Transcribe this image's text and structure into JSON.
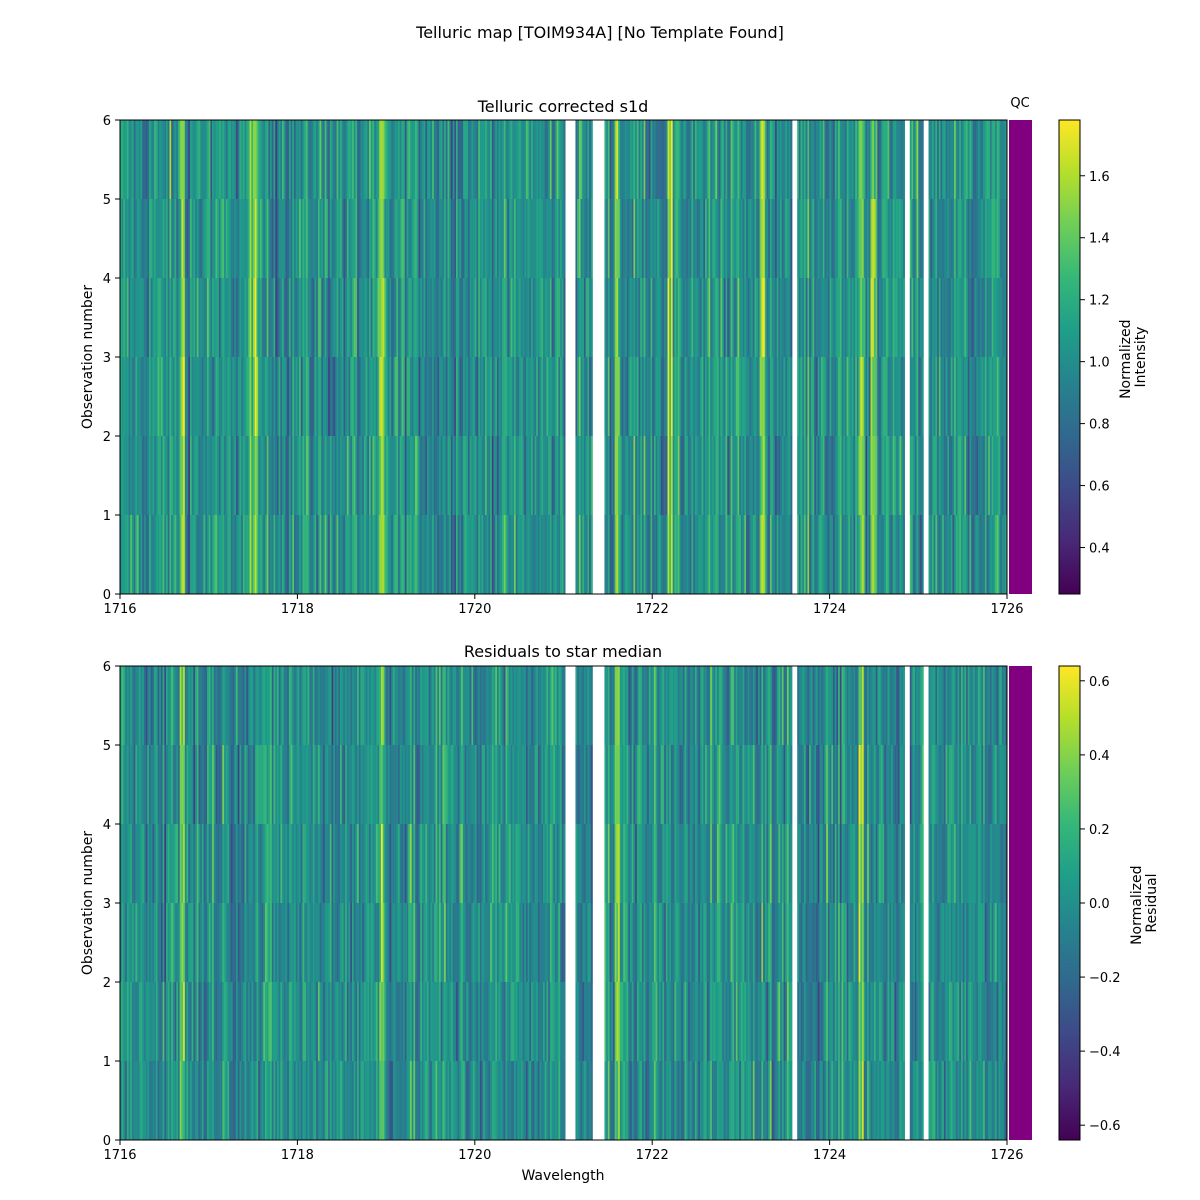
{
  "figure": {
    "suptitle": "Telluric map [TOIM934A] [No Template Found]"
  },
  "qc": {
    "label": "QC",
    "color": "#800080"
  },
  "colormap": [
    "#440154",
    "#482878",
    "#3e4989",
    "#31688e",
    "#26828e",
    "#1f9e89",
    "#35b779",
    "#6ece58",
    "#b5de2b",
    "#fde725"
  ],
  "chart_data": [
    {
      "type": "heatmap",
      "title": "Telluric corrected s1d",
      "xlabel": "",
      "ylabel": "Observation number",
      "xlim": [
        1716,
        1726
      ],
      "ylim": [
        0,
        6
      ],
      "xticks": [
        "1716",
        "1718",
        "1720",
        "1722",
        "1724",
        "1726"
      ],
      "yticks": [
        "0",
        "1",
        "2",
        "3",
        "4",
        "5",
        "6"
      ],
      "colorbar": {
        "label": [
          "Normalized",
          "Intensity"
        ],
        "range": [
          0.25,
          1.78
        ],
        "ticks": [
          "0.4",
          "0.6",
          "0.8",
          "1.0",
          "1.2",
          "1.4",
          "1.6"
        ],
        "tick_values": [
          0.4,
          0.6,
          0.8,
          1.0,
          1.2,
          1.4,
          1.6
        ]
      },
      "gaps": [
        [
          1721.02,
          1721.13
        ],
        [
          1721.33,
          1721.47
        ],
        [
          1723.58,
          1723.63
        ],
        [
          1724.84,
          1724.9
        ],
        [
          1725.05,
          1725.12
        ]
      ],
      "value_center": 1.02,
      "value_spread": 0.18,
      "bright_lines": [
        1716.7,
        1717.5,
        1718.95,
        1721.6,
        1722.2,
        1723.25,
        1724.35,
        1724.5
      ]
    },
    {
      "type": "heatmap",
      "title": "Residuals to star median",
      "xlabel": "Wavelength",
      "ylabel": "Observation number",
      "xlim": [
        1716,
        1726
      ],
      "ylim": [
        0,
        6
      ],
      "xticks": [
        "1716",
        "1718",
        "1720",
        "1722",
        "1724",
        "1726"
      ],
      "yticks": [
        "0",
        "1",
        "2",
        "3",
        "4",
        "5",
        "6"
      ],
      "colorbar": {
        "label": [
          "Normalized",
          "Residual"
        ],
        "range": [
          -0.64,
          0.64
        ],
        "ticks": [
          "−0.6",
          "−0.4",
          "−0.2",
          "0.0",
          "0.2",
          "0.4",
          "0.6"
        ],
        "tick_values": [
          -0.6,
          -0.4,
          -0.2,
          0.0,
          0.2,
          0.4,
          0.6
        ]
      },
      "gaps": [
        [
          1721.02,
          1721.13
        ],
        [
          1721.33,
          1721.47
        ],
        [
          1723.58,
          1723.63
        ],
        [
          1724.84,
          1724.9
        ],
        [
          1725.05,
          1725.12
        ]
      ],
      "value_center": 0.0,
      "value_spread": 0.15,
      "bright_lines": [
        1716.7,
        1718.95,
        1721.6,
        1724.35
      ]
    }
  ]
}
